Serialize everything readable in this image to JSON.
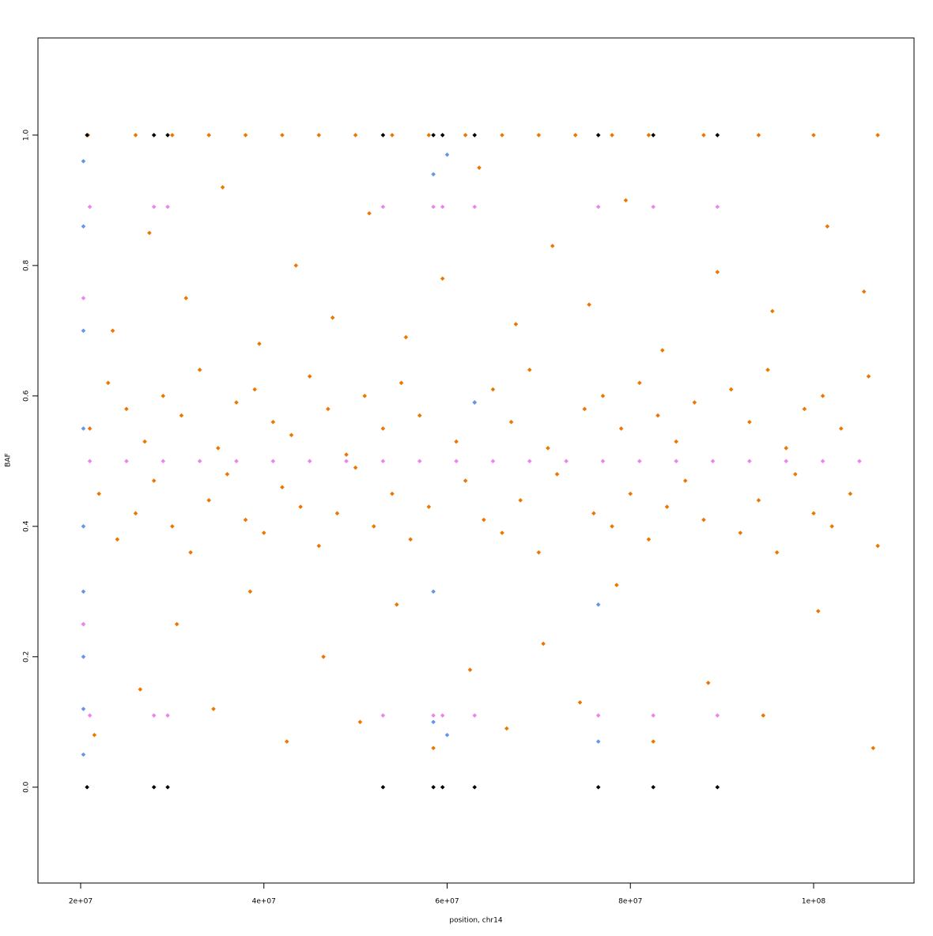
{
  "chart_data": {
    "type": "scatter",
    "xlabel": "position, chr14",
    "ylabel": "BAF",
    "xlim": [
      15340000,
      110960000
    ],
    "ylim": [
      -0.147,
      1.149
    ],
    "xticks": [
      {
        "value": 20000000,
        "label": "2e+07"
      },
      {
        "value": 40000000,
        "label": "4e+07"
      },
      {
        "value": 60000000,
        "label": "6e+07"
      },
      {
        "value": 80000000,
        "label": "8e+07"
      },
      {
        "value": 100000000,
        "label": "1e+08"
      }
    ],
    "yticks": [
      {
        "value": 0,
        "label": "0.0"
      },
      0.2,
      0.4,
      0.6,
      0.8,
      {
        "value": 1,
        "label": "1.0"
      }
    ],
    "series": [
      {
        "color": "#ee7600",
        "x": [
          21000000.0,
          23000000.0,
          25000000.0,
          27000000.0,
          29000000.0,
          31000000.0,
          33000000.0,
          35000000.0,
          37000000.0,
          39000000.0,
          41000000.0,
          43000000.0,
          45000000.0,
          47000000.0,
          49000000.0,
          51000000.0,
          53000000.0,
          55000000.0,
          57000000.0,
          61000000.0,
          63000000.0,
          65000000.0,
          67000000.0,
          69000000.0,
          71000000.0,
          75000000.0,
          77000000.0,
          79000000.0,
          81000000.0,
          83000000.0,
          85000000.0,
          87000000.0,
          91000000.0,
          93000000.0,
          95000000.0,
          97000000.0,
          99000000.0,
          101000000.0,
          103000000.0,
          106000000.0,
          22000000.0,
          24000000.0,
          26000000.0,
          28000000.0,
          30000000.0,
          32000000.0,
          34000000.0,
          36000000.0,
          38000000.0,
          40000000.0,
          42000000.0,
          44000000.0,
          46000000.0,
          48000000.0,
          50000000.0,
          52000000.0,
          54000000.0,
          56000000.0,
          58000000.0,
          62000000.0,
          64000000.0,
          66000000.0,
          68000000.0,
          70000000.0,
          72000000.0,
          76000000.0,
          78000000.0,
          80000000.0,
          82000000.0,
          84000000.0,
          86000000.0,
          88000000.0,
          92000000.0,
          94000000.0,
          96000000.0,
          98000000.0,
          100000000.0,
          102000000.0,
          104000000.0,
          107000000.0,
          20800000.0,
          26000000.0,
          30000000.0,
          34000000.0,
          38000000.0,
          42000000.0,
          46000000.0,
          50000000.0,
          54000000.0,
          58000000.0,
          62000000.0,
          66000000.0,
          70000000.0,
          74000000.0,
          78000000.0,
          82000000.0,
          88000000.0,
          94000000.0,
          100000000.0,
          107000000.0,
          21500000.0,
          26500000.0,
          30500000.0,
          34500000.0,
          38500000.0,
          42500000.0,
          46500000.0,
          50500000.0,
          54500000.0,
          58500000.0,
          62500000.0,
          66500000.0,
          70500000.0,
          74500000.0,
          78500000.0,
          82500000.0,
          88500000.0,
          94500000.0,
          100500000.0,
          106500000.0,
          23500000.0,
          27500000.0,
          31500000.0,
          35500000.0,
          39500000.0,
          43500000.0,
          47500000.0,
          51500000.0,
          55500000.0,
          59500000.0,
          63500000.0,
          67500000.0,
          71500000.0,
          75500000.0,
          79500000.0,
          83500000.0,
          89500000.0,
          95500000.0,
          101500000.0,
          105500000.0
        ],
        "values": [
          0.55,
          0.62,
          0.58,
          0.53,
          0.6,
          0.57,
          0.64,
          0.52,
          0.59,
          0.61,
          0.56,
          0.54,
          0.63,
          0.58,
          0.51,
          0.6,
          0.55,
          0.62,
          0.57,
          0.53,
          0.59,
          0.61,
          0.56,
          0.64,
          0.52,
          0.58,
          0.6,
          0.55,
          0.62,
          0.57,
          0.53,
          0.59,
          0.61,
          0.56,
          0.64,
          0.52,
          0.58,
          0.6,
          0.55,
          0.63,
          0.45,
          0.38,
          0.42,
          0.47,
          0.4,
          0.36,
          0.44,
          0.48,
          0.41,
          0.39,
          0.46,
          0.43,
          0.37,
          0.42,
          0.49,
          0.4,
          0.45,
          0.38,
          0.43,
          0.47,
          0.41,
          0.39,
          0.44,
          0.36,
          0.48,
          0.42,
          0.4,
          0.45,
          0.38,
          0.43,
          0.47,
          0.41,
          0.39,
          0.44,
          0.36,
          0.48,
          0.42,
          0.4,
          0.45,
          0.37,
          1,
          1,
          1,
          1,
          1,
          1,
          1,
          1,
          1,
          1,
          1,
          1,
          1,
          1,
          1,
          1,
          1,
          1,
          1,
          1,
          0.08,
          0.15,
          0.25,
          0.12,
          0.3,
          0.07,
          0.2,
          0.1,
          0.28,
          0.06,
          0.18,
          0.09,
          0.22,
          0.13,
          0.31,
          0.07,
          0.16,
          0.11,
          0.27,
          0.06,
          0.7,
          0.85,
          0.75,
          0.92,
          0.68,
          0.8,
          0.72,
          0.88,
          0.69,
          0.78,
          0.95,
          0.71,
          0.83,
          0.74,
          0.9,
          0.67,
          0.79,
          0.73,
          0.86,
          0.76
        ]
      },
      {
        "color": "#6495ed",
        "x": [
          20300000.0,
          20300000.0,
          20300000.0,
          20300000.0,
          20300000.0,
          20300000.0,
          20300000.0,
          20300000.0,
          20300000.0,
          20300000.0,
          58500000.0,
          58500000.0,
          58500000.0,
          60000000.0,
          60000000.0,
          76500000.0,
          76500000.0,
          63000000.0
        ],
        "values": [
          0.05,
          0.12,
          0.2,
          0.25,
          0.3,
          0.4,
          0.55,
          0.7,
          0.86,
          0.96,
          0.1,
          0.3,
          0.94,
          0.08,
          0.97,
          0.07,
          0.28,
          0.59
        ]
      },
      {
        "color": "#ee82ee",
        "x": [
          21000000.0,
          25000000.0,
          29000000.0,
          33000000.0,
          37000000.0,
          41000000.0,
          45000000.0,
          49000000.0,
          53000000.0,
          57000000.0,
          61000000.0,
          65000000.0,
          69000000.0,
          73000000.0,
          77000000.0,
          81000000.0,
          85000000.0,
          89000000.0,
          93000000.0,
          97000000.0,
          101000000.0,
          105000000.0,
          21000000.0,
          28000000.0,
          29500000.0,
          53000000.0,
          58500000.0,
          59500000.0,
          63000000.0,
          76500000.0,
          82500000.0,
          89500000.0,
          21000000.0,
          28000000.0,
          29500000.0,
          53000000.0,
          58500000.0,
          59500000.0,
          63000000.0,
          76500000.0,
          82500000.0,
          89500000.0,
          20300000.0,
          20300000.0
        ],
        "values": [
          0.5,
          0.5,
          0.5,
          0.5,
          0.5,
          0.5,
          0.5,
          0.5,
          0.5,
          0.5,
          0.5,
          0.5,
          0.5,
          0.5,
          0.5,
          0.5,
          0.5,
          0.5,
          0.5,
          0.5,
          0.5,
          0.5,
          0.89,
          0.89,
          0.89,
          0.89,
          0.89,
          0.89,
          0.89,
          0.89,
          0.89,
          0.89,
          0.11,
          0.11,
          0.11,
          0.11,
          0.11,
          0.11,
          0.11,
          0.11,
          0.11,
          0.11,
          0.75,
          0.25
        ]
      },
      {
        "color": "#000000",
        "x": [
          20700000.0,
          28000000.0,
          29500000.0,
          53000000.0,
          58500000.0,
          59500000.0,
          63000000.0,
          76500000.0,
          82500000.0,
          89500000.0,
          20700000.0,
          28000000.0,
          29500000.0,
          53000000.0,
          58500000.0,
          59500000.0,
          63000000.0,
          76500000.0,
          82500000.0,
          89500000.0
        ],
        "values": [
          1,
          1,
          1,
          1,
          1,
          1,
          1,
          1,
          1,
          1,
          0,
          0,
          0,
          0,
          0,
          0,
          0,
          0,
          0,
          0
        ]
      }
    ]
  }
}
